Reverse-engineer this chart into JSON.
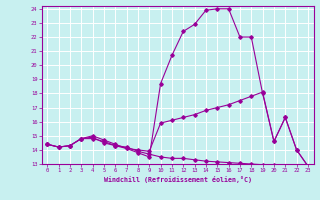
{
  "xlabel": "Windchill (Refroidissement éolien,°C)",
  "xlim": [
    -0.5,
    23.5
  ],
  "ylim": [
    13,
    24.2
  ],
  "yticks": [
    13,
    14,
    15,
    16,
    17,
    18,
    19,
    20,
    21,
    22,
    23,
    24
  ],
  "xticks": [
    0,
    1,
    2,
    3,
    4,
    5,
    6,
    7,
    8,
    9,
    10,
    11,
    12,
    13,
    14,
    15,
    16,
    17,
    18,
    19,
    20,
    21,
    22,
    23
  ],
  "bg_color": "#c8f0f0",
  "line_color": "#990099",
  "grid_color": "#ffffff",
  "line1_x": [
    0,
    1,
    2,
    3,
    4,
    5,
    6,
    7,
    8,
    9,
    10,
    11,
    12,
    13,
    14,
    15,
    16,
    17,
    18,
    19,
    20,
    21,
    22,
    23
  ],
  "line1_y": [
    14.4,
    14.2,
    14.3,
    14.8,
    15.0,
    14.7,
    14.4,
    14.1,
    13.8,
    13.5,
    18.7,
    20.7,
    22.4,
    22.9,
    23.9,
    24.0,
    24.0,
    22.0,
    22.0,
    18.0,
    14.6,
    16.3,
    14.0,
    12.85
  ],
  "line2_x": [
    0,
    1,
    2,
    3,
    4,
    5,
    6,
    7,
    8,
    9,
    10,
    11,
    12,
    13,
    14,
    15,
    16,
    17,
    18,
    19,
    20,
    21,
    22,
    23
  ],
  "line2_y": [
    14.4,
    14.2,
    14.3,
    14.8,
    14.9,
    14.5,
    14.3,
    14.1,
    14.0,
    13.9,
    15.9,
    16.1,
    16.3,
    16.5,
    16.8,
    17.0,
    17.2,
    17.5,
    17.8,
    18.1,
    14.6,
    16.3,
    14.0,
    12.85
  ],
  "line3_x": [
    0,
    1,
    2,
    3,
    4,
    5,
    6,
    7,
    8,
    9,
    10,
    11,
    12,
    13,
    14,
    15,
    16,
    17,
    18,
    19,
    20,
    21,
    22,
    23
  ],
  "line3_y": [
    14.4,
    14.2,
    14.3,
    14.8,
    14.8,
    14.6,
    14.3,
    14.2,
    13.9,
    13.7,
    13.5,
    13.4,
    13.4,
    13.3,
    13.2,
    13.15,
    13.1,
    13.05,
    13.0,
    12.95,
    12.9,
    12.88,
    12.85,
    12.8
  ]
}
